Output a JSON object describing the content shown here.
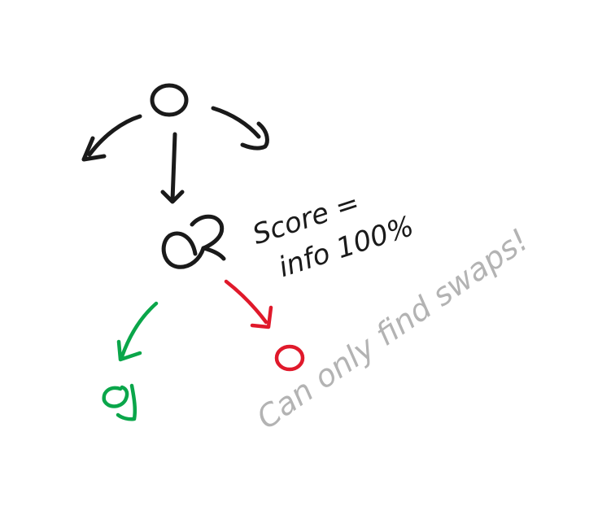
{
  "diagram": {
    "colors": {
      "ink": "#1a1a1a",
      "good": "#0aa64a",
      "bad": "#e0192b",
      "note": "#b3b3b3",
      "background": "#ffffff"
    },
    "score_annotation": {
      "line1": "Score =",
      "line2": "info 100%"
    },
    "side_note": "Can only find swaps!"
  }
}
